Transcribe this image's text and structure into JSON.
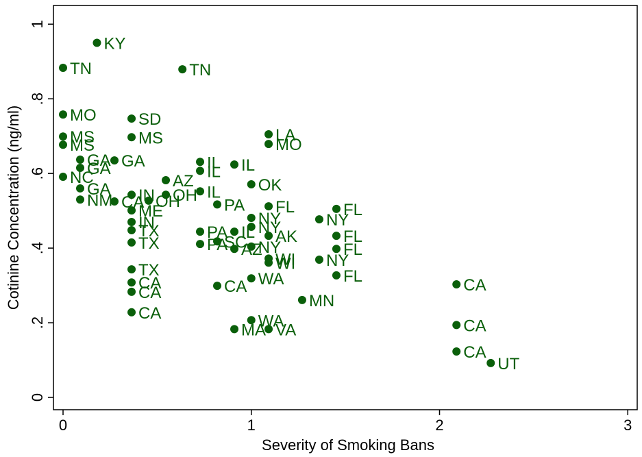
{
  "chart_data": {
    "type": "scatter",
    "x_label": "Severity of Smoking Bans",
    "y_label": "Cotinine Concentration (ng/ml)",
    "xlim": [
      -0.051,
      3.05
    ],
    "ylim": [
      -0.033,
      1.05
    ],
    "xticks": [
      0,
      1,
      2,
      3
    ],
    "yticks": [
      0,
      {
        "value": 0.2,
        "label": ".2"
      },
      {
        "value": 0.4,
        "label": ".4"
      },
      {
        "value": 0.6,
        "label": ".6"
      },
      {
        "value": 0.8,
        "label": ".8"
      },
      1
    ],
    "color": "#0a5f0a",
    "x": [
      0.18,
      0,
      0.634,
      0,
      0,
      0,
      0.364,
      0.364,
      0.091,
      0.091,
      0.273,
      0,
      0.091,
      0.091,
      0.273,
      0.364,
      0.455,
      0.546,
      0.364,
      0.364,
      0.364,
      0.364,
      0.546,
      0.728,
      0.728,
      0.728,
      0.91,
      0.819,
      0.728,
      0.728,
      0.819,
      0.91,
      0.91,
      1.0,
      1.092,
      1.0,
      1.0,
      1.0,
      1.092,
      1.092,
      1.092,
      1.0,
      0.819,
      1.092,
      1.092,
      0.364,
      0.364,
      0.364,
      0.364,
      1.27,
      1.0,
      0.91,
      1.092,
      1.361,
      1.361,
      1.452,
      1.452,
      1.452,
      1.452,
      2.09,
      2.09,
      2.09,
      2.272
    ],
    "values": [
      0.95,
      0.883,
      0.879,
      0.758,
      0.699,
      0.677,
      0.747,
      0.697,
      0.637,
      0.615,
      0.635,
      0.591,
      0.56,
      0.53,
      0.525,
      0.543,
      0.527,
      0.543,
      0.501,
      0.47,
      0.448,
      0.415,
      0.582,
      0.631,
      0.607,
      0.552,
      0.624,
      0.517,
      0.444,
      0.411,
      0.418,
      0.444,
      0.398,
      0.571,
      0.512,
      0.481,
      0.457,
      0.404,
      0.433,
      0.372,
      0.361,
      0.319,
      0.299,
      0.705,
      0.679,
      0.343,
      0.308,
      0.283,
      0.228,
      0.261,
      0.207,
      0.183,
      0.183,
      0.477,
      0.369,
      0.505,
      0.433,
      0.398,
      0.327,
      0.303,
      0.194,
      0.123,
      0.092
    ],
    "labels": [
      "KY",
      "TN",
      "TN",
      "MO",
      "MS",
      "MS",
      "SD",
      "MS",
      "GA",
      "GA",
      "GA",
      "NC",
      "GA",
      "NM",
      "CA",
      "IN",
      "OH",
      "OH",
      "ME",
      "IN",
      "TX",
      "TX",
      "AZ",
      "IL",
      "IL",
      "IL",
      "IL",
      "PA",
      "PA",
      "PA",
      "SC",
      "IL",
      "AZ",
      "OK",
      "FL",
      "NY",
      "NY",
      "NY",
      "AK",
      "WI",
      "WI",
      "WA",
      "CA",
      "LA",
      "MO",
      "TX",
      "CA",
      "CA",
      "CA",
      "MN",
      "WA",
      "MA",
      "VA",
      "NY",
      "NY",
      "FL",
      "FL",
      "FL",
      "FL",
      "CA",
      "CA",
      "CA",
      "UT"
    ]
  }
}
